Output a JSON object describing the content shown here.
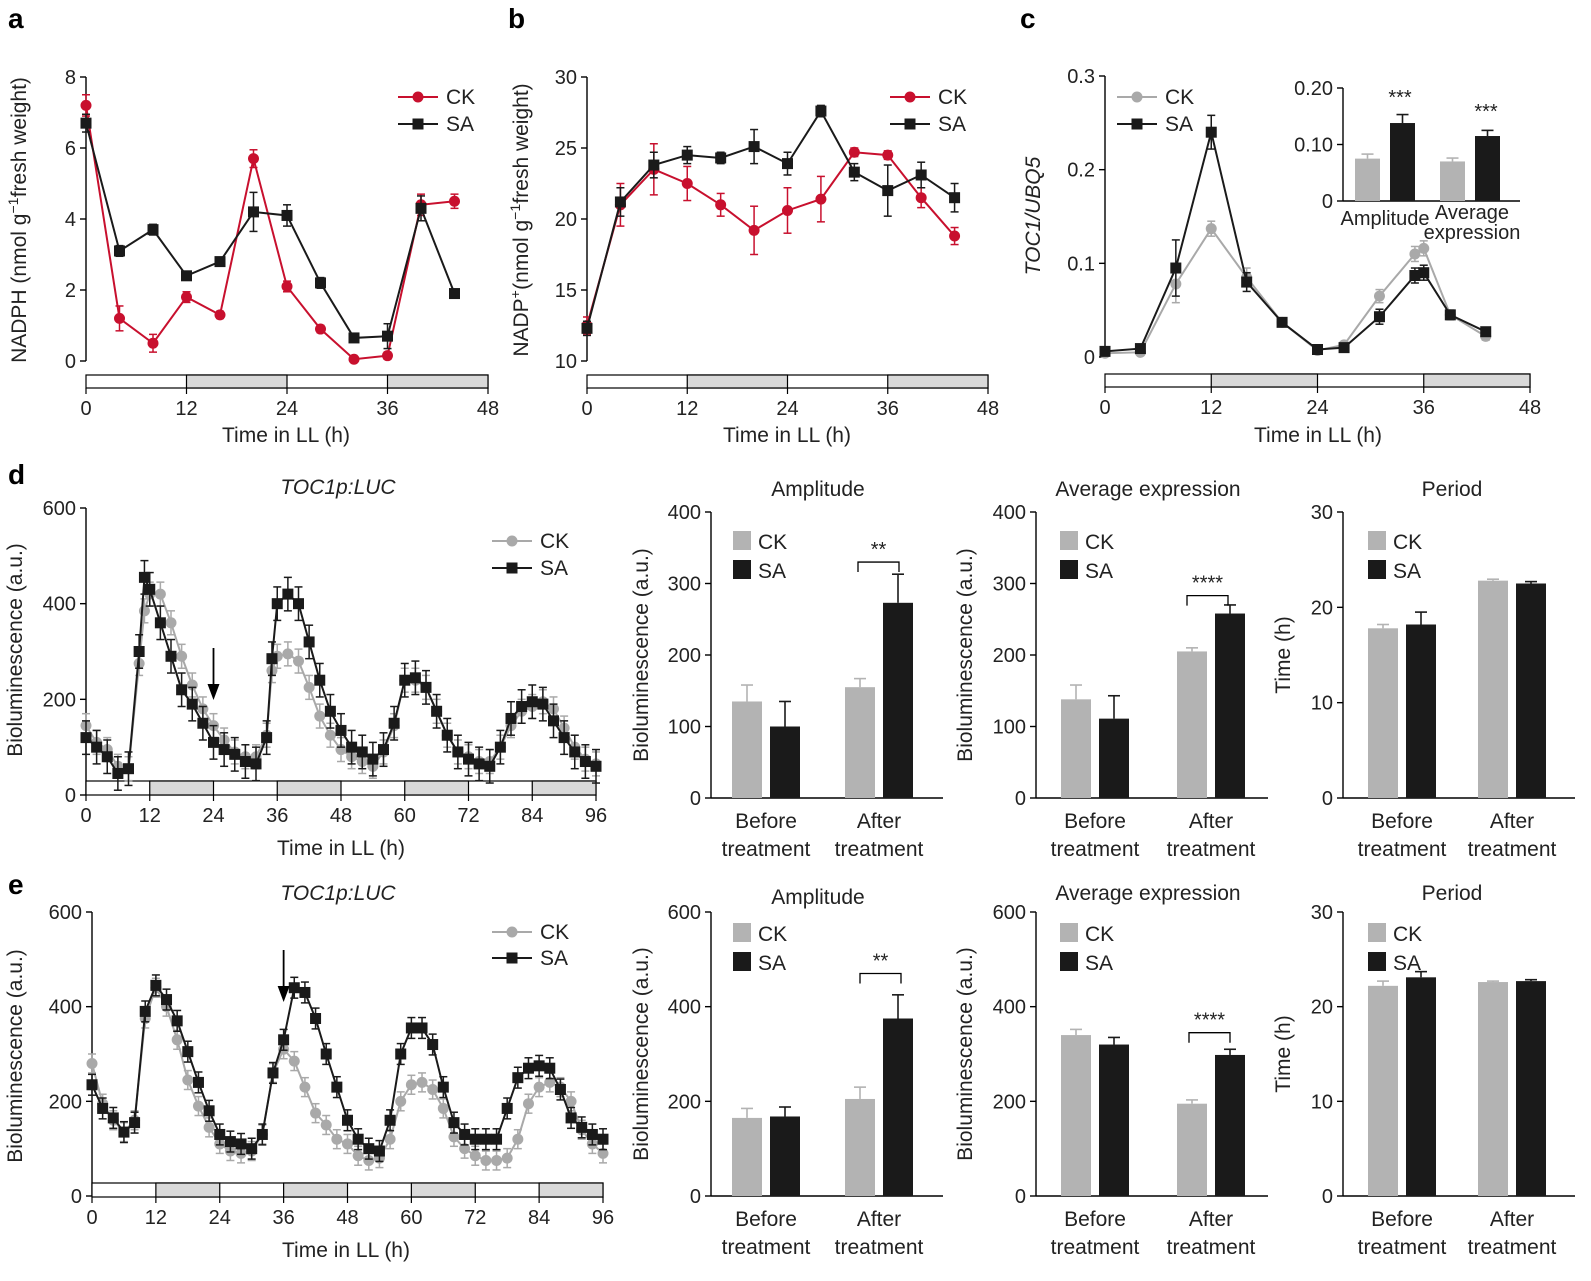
{
  "colors": {
    "ck_red": "#c8102e",
    "ck_grey": "#a9a9a9",
    "sa": "#1a1a1a",
    "bar_grey": "#b3b3b3",
    "dark": "#1a1a1a",
    "band": "#d9d9d9"
  },
  "panel_labels": {
    "a": "a",
    "b": "b",
    "c": "c",
    "d": "d",
    "e": "e"
  },
  "legend": {
    "ck": "CK",
    "sa": "SA"
  },
  "bar_categories": [
    [
      "Before",
      "treatment"
    ],
    [
      "After",
      "treatment"
    ]
  ],
  "xlabel": "Time in LL (h)",
  "chart_data": [
    {
      "id": "a",
      "type": "line",
      "xlabel": "Time in LL (h)",
      "ylabel": "NADPH (nmol g⁻¹ fresh weight)",
      "ylim": [
        0,
        8
      ],
      "yticks": [
        0,
        2,
        4,
        6,
        8
      ],
      "xlim": [
        0,
        48
      ],
      "xticks": [
        0,
        12,
        24,
        36,
        48
      ],
      "series": [
        {
          "name": "CK",
          "x": [
            0,
            4,
            8,
            12,
            16,
            20,
            24,
            28,
            32,
            36,
            40,
            44
          ],
          "values": [
            7.2,
            1.2,
            0.5,
            1.8,
            1.3,
            5.7,
            2.1,
            0.9,
            0.05,
            0.15,
            4.4,
            4.5
          ],
          "err": [
            0.3,
            0.35,
            0.25,
            0.15,
            0.1,
            0.25,
            0.15,
            0.1,
            0.05,
            0.1,
            0.3,
            0.2
          ]
        },
        {
          "name": "SA",
          "x": [
            0,
            4,
            8,
            12,
            16,
            20,
            24,
            28,
            32,
            36,
            40,
            44
          ],
          "values": [
            6.7,
            3.1,
            3.7,
            2.4,
            2.8,
            4.2,
            4.1,
            2.2,
            0.65,
            0.7,
            4.3,
            1.9
          ],
          "err": [
            0.25,
            0.15,
            0.15,
            0.1,
            0.1,
            0.55,
            0.3,
            0.15,
            0.05,
            0.35,
            0.35,
            0.1
          ]
        }
      ]
    },
    {
      "id": "b",
      "type": "line",
      "xlabel": "Time in LL (h)",
      "ylabel": "NADP⁺ (nmol g⁻¹ fresh weight)",
      "ylim": [
        10,
        30
      ],
      "yticks": [
        10,
        15,
        20,
        25,
        30
      ],
      "xlim": [
        0,
        48
      ],
      "xticks": [
        0,
        12,
        24,
        36,
        48
      ],
      "series": [
        {
          "name": "CK",
          "x": [
            0,
            4,
            8,
            12,
            16,
            20,
            24,
            28,
            32,
            36,
            40,
            44
          ],
          "values": [
            12.5,
            21.0,
            23.5,
            22.5,
            21.0,
            19.2,
            20.6,
            21.4,
            24.7,
            24.5,
            21.5,
            18.8
          ],
          "err": [
            0.6,
            1.5,
            1.8,
            1.2,
            0.8,
            1.7,
            1.6,
            1.6,
            0.3,
            0.3,
            0.7,
            0.6
          ]
        },
        {
          "name": "SA",
          "x": [
            0,
            4,
            8,
            12,
            16,
            20,
            24,
            28,
            32,
            36,
            40,
            44
          ],
          "values": [
            12.3,
            21.2,
            23.8,
            24.5,
            24.3,
            25.1,
            23.9,
            27.6,
            23.3,
            22.0,
            23.1,
            21.5
          ],
          "err": [
            0.5,
            1.0,
            0.9,
            0.6,
            0.4,
            1.2,
            0.8,
            0.4,
            0.6,
            1.8,
            0.9,
            1.0
          ]
        }
      ]
    },
    {
      "id": "c",
      "type": "line",
      "xlabel": "Time in LL (h)",
      "ylabel": "TOC1/UBQ5",
      "ylim": [
        0,
        0.3
      ],
      "yticks": [
        0,
        0.1,
        0.2,
        0.3
      ],
      "ytick_labels": [
        "0",
        "0.1",
        "0.2",
        "0.3"
      ],
      "xlim": [
        0,
        48
      ],
      "xticks": [
        0,
        12,
        24,
        36,
        48
      ],
      "series": [
        {
          "name": "CK",
          "x": [
            0,
            4,
            8,
            12,
            16,
            20,
            24,
            27,
            31,
            35,
            36,
            39,
            43
          ],
          "values": [
            0.004,
            0.005,
            0.078,
            0.137,
            0.085,
            0.037,
            0.007,
            0.013,
            0.065,
            0.11,
            0.116,
            0.045,
            0.022
          ],
          "err": [
            0.002,
            0.002,
            0.02,
            0.008,
            0.01,
            0.004,
            0.002,
            0.003,
            0.007,
            0.008,
            0.008,
            0.005,
            0.004
          ]
        },
        {
          "name": "SA",
          "x": [
            0,
            4,
            8,
            12,
            16,
            20,
            24,
            27,
            31,
            35,
            36,
            39,
            43
          ],
          "values": [
            0.006,
            0.009,
            0.095,
            0.24,
            0.08,
            0.037,
            0.008,
            0.01,
            0.043,
            0.087,
            0.09,
            0.045,
            0.027
          ],
          "err": [
            0.003,
            0.003,
            0.03,
            0.018,
            0.01,
            0.004,
            0.003,
            0.003,
            0.008,
            0.008,
            0.008,
            0.005,
            0.004
          ]
        }
      ]
    },
    {
      "id": "c_inset",
      "type": "bar",
      "categories": [
        "Amplitude",
        [
          "Average",
          "expression"
        ]
      ],
      "ylim": [
        0,
        0.2
      ],
      "yticks": [
        0,
        0.1,
        0.2
      ],
      "ytick_labels": [
        "0",
        "0.10",
        "0.20"
      ],
      "series": [
        {
          "name": "CK",
          "values": [
            0.075,
            0.07
          ],
          "err": [
            0.008,
            0.006
          ]
        },
        {
          "name": "SA",
          "values": [
            0.138,
            0.115
          ],
          "err": [
            0.015,
            0.01
          ]
        }
      ],
      "annotations": [
        "***",
        "***"
      ]
    },
    {
      "id": "d",
      "type": "line",
      "title": "TOC1p:LUC",
      "xlabel": "Time in LL (h)",
      "ylabel": "Bioluminescence (a.u.)",
      "ylim": [
        0,
        600
      ],
      "yticks": [
        0,
        200,
        400,
        600
      ],
      "xlim": [
        0,
        96
      ],
      "xticks": [
        0,
        12,
        24,
        36,
        48,
        60,
        72,
        84,
        96
      ],
      "arrow_x": 24,
      "series": [
        {
          "name": "CK",
          "x": [
            0,
            2,
            4,
            6,
            8,
            10,
            11,
            12,
            14,
            16,
            18,
            20,
            22,
            24,
            26,
            28,
            30,
            32,
            34,
            35,
            36,
            38,
            40,
            42,
            44,
            46,
            48,
            50,
            52,
            54,
            56,
            58,
            60,
            62,
            64,
            66,
            68,
            70,
            72,
            74,
            76,
            78,
            80,
            82,
            84,
            86,
            88,
            90,
            92,
            94,
            96
          ],
          "values": [
            145,
            110,
            95,
            60,
            55,
            275,
            385,
            420,
            420,
            360,
            290,
            230,
            180,
            145,
            115,
            90,
            80,
            80,
            125,
            260,
            290,
            295,
            280,
            225,
            165,
            125,
            95,
            80,
            70,
            60,
            90,
            145,
            240,
            240,
            225,
            175,
            125,
            90,
            80,
            70,
            70,
            100,
            145,
            175,
            185,
            195,
            180,
            140,
            100,
            75,
            65
          ],
          "err": 25
        },
        {
          "name": "SA",
          "x": [
            0,
            2,
            4,
            6,
            8,
            10,
            11,
            12,
            14,
            16,
            18,
            20,
            22,
            24,
            26,
            28,
            30,
            32,
            34,
            35,
            36,
            38,
            40,
            42,
            44,
            46,
            48,
            50,
            52,
            54,
            56,
            58,
            60,
            62,
            64,
            66,
            68,
            70,
            72,
            74,
            76,
            78,
            80,
            82,
            84,
            86,
            88,
            90,
            92,
            94,
            96
          ],
          "values": [
            120,
            100,
            80,
            45,
            55,
            300,
            455,
            430,
            360,
            290,
            220,
            190,
            150,
            110,
            95,
            85,
            70,
            65,
            120,
            285,
            400,
            420,
            400,
            320,
            240,
            175,
            135,
            100,
            90,
            75,
            95,
            150,
            240,
            245,
            225,
            175,
            125,
            90,
            75,
            65,
            60,
            100,
            160,
            185,
            195,
            190,
            155,
            120,
            90,
            70,
            60
          ],
          "err": 35
        }
      ]
    },
    {
      "id": "d_amp",
      "type": "bar",
      "title": "Amplitude",
      "ylabel": "Bioluminescence (a.u.)",
      "ylim": [
        0,
        400
      ],
      "yticks": [
        0,
        100,
        200,
        300,
        400
      ],
      "series": [
        {
          "name": "CK",
          "values": [
            135,
            155
          ],
          "err": [
            23,
            12
          ]
        },
        {
          "name": "SA",
          "values": [
            100,
            273
          ],
          "err": [
            35,
            40
          ]
        }
      ],
      "annotation": "**"
    },
    {
      "id": "d_avg",
      "type": "bar",
      "title": "Average expression",
      "ylabel": "Bioluminescence (a.u.)",
      "ylim": [
        0,
        400
      ],
      "yticks": [
        0,
        100,
        200,
        300,
        400
      ],
      "series": [
        {
          "name": "CK",
          "values": [
            138,
            205
          ],
          "err": [
            20,
            5
          ]
        },
        {
          "name": "SA",
          "values": [
            111,
            258
          ],
          "err": [
            32,
            12
          ]
        }
      ],
      "annotation": "****"
    },
    {
      "id": "d_per",
      "type": "bar",
      "title": "Period",
      "ylabel": "Time (h)",
      "ylim": [
        0,
        30
      ],
      "yticks": [
        0,
        10,
        20,
        30
      ],
      "series": [
        {
          "name": "CK",
          "values": [
            17.8,
            22.8
          ],
          "err": [
            0.4,
            0.15
          ]
        },
        {
          "name": "SA",
          "values": [
            18.2,
            22.5
          ],
          "err": [
            1.3,
            0.2
          ]
        }
      ]
    },
    {
      "id": "e",
      "type": "line",
      "title": "TOC1p:LUC",
      "xlabel": "Time in LL (h)",
      "ylabel": "Bioluminescence (a.u.)",
      "ylim": [
        0,
        600
      ],
      "yticks": [
        0,
        200,
        400,
        600
      ],
      "xlim": [
        0,
        96
      ],
      "xticks": [
        0,
        12,
        24,
        36,
        48,
        60,
        72,
        84,
        96
      ],
      "arrow_x": 36,
      "series": [
        {
          "name": "CK",
          "x": [
            0,
            2,
            4,
            6,
            8,
            10,
            12,
            14,
            16,
            18,
            20,
            22,
            24,
            26,
            28,
            30,
            32,
            34,
            36,
            38,
            40,
            42,
            44,
            46,
            48,
            50,
            52,
            54,
            56,
            58,
            60,
            62,
            64,
            66,
            68,
            70,
            72,
            74,
            76,
            78,
            80,
            82,
            84,
            86,
            88,
            90,
            92,
            94,
            96
          ],
          "values": [
            280,
            195,
            160,
            135,
            160,
            375,
            440,
            400,
            330,
            245,
            190,
            145,
            110,
            95,
            90,
            95,
            130,
            260,
            310,
            285,
            230,
            175,
            150,
            120,
            110,
            85,
            75,
            80,
            120,
            200,
            235,
            240,
            225,
            185,
            125,
            100,
            85,
            75,
            75,
            80,
            120,
            195,
            230,
            240,
            230,
            200,
            140,
            110,
            90
          ],
          "err": 20
        },
        {
          "name": "SA",
          "x": [
            0,
            2,
            4,
            6,
            8,
            10,
            12,
            14,
            16,
            18,
            20,
            22,
            24,
            26,
            28,
            30,
            32,
            34,
            36,
            38,
            40,
            42,
            44,
            46,
            48,
            50,
            52,
            54,
            56,
            58,
            60,
            62,
            64,
            66,
            68,
            70,
            72,
            74,
            76,
            78,
            80,
            82,
            84,
            86,
            88,
            90,
            92,
            94,
            96
          ],
          "values": [
            235,
            185,
            165,
            135,
            155,
            390,
            445,
            415,
            370,
            305,
            240,
            180,
            130,
            115,
            110,
            100,
            130,
            260,
            330,
            440,
            430,
            375,
            300,
            230,
            160,
            120,
            100,
            95,
            160,
            300,
            355,
            355,
            320,
            230,
            155,
            130,
            120,
            120,
            120,
            185,
            250,
            270,
            275,
            270,
            225,
            165,
            145,
            130,
            120
          ],
          "err": 22
        }
      ]
    },
    {
      "id": "e_amp",
      "type": "bar",
      "title": "Amplitude",
      "ylabel": "Bioluminescence (a.u.)",
      "ylim": [
        0,
        600
      ],
      "yticks": [
        0,
        200,
        400,
        600
      ],
      "series": [
        {
          "name": "CK",
          "values": [
            165,
            205
          ],
          "err": [
            20,
            25
          ]
        },
        {
          "name": "SA",
          "values": [
            168,
            375
          ],
          "err": [
            20,
            50
          ]
        }
      ],
      "annotation": "**"
    },
    {
      "id": "e_avg",
      "type": "bar",
      "title": "Average expression",
      "ylabel": "Bioluminescence (a.u.)",
      "ylim": [
        0,
        600
      ],
      "yticks": [
        200,
        400,
        600
      ],
      "series": [
        {
          "name": "CK",
          "values": [
            340,
            195
          ],
          "err": [
            12,
            8
          ]
        },
        {
          "name": "SA",
          "values": [
            320,
            298
          ],
          "err": [
            15,
            12
          ]
        }
      ],
      "annotation": "****"
    },
    {
      "id": "e_per",
      "type": "bar",
      "title": "Period",
      "ylabel": "Time (h)",
      "ylim": [
        0,
        30
      ],
      "yticks": [
        0,
        10,
        20,
        30
      ],
      "series": [
        {
          "name": "CK",
          "values": [
            22.2,
            22.6
          ],
          "err": [
            0.5,
            0.1
          ]
        },
        {
          "name": "SA",
          "values": [
            23.1,
            22.7
          ],
          "err": [
            0.6,
            0.15
          ]
        }
      ]
    }
  ]
}
